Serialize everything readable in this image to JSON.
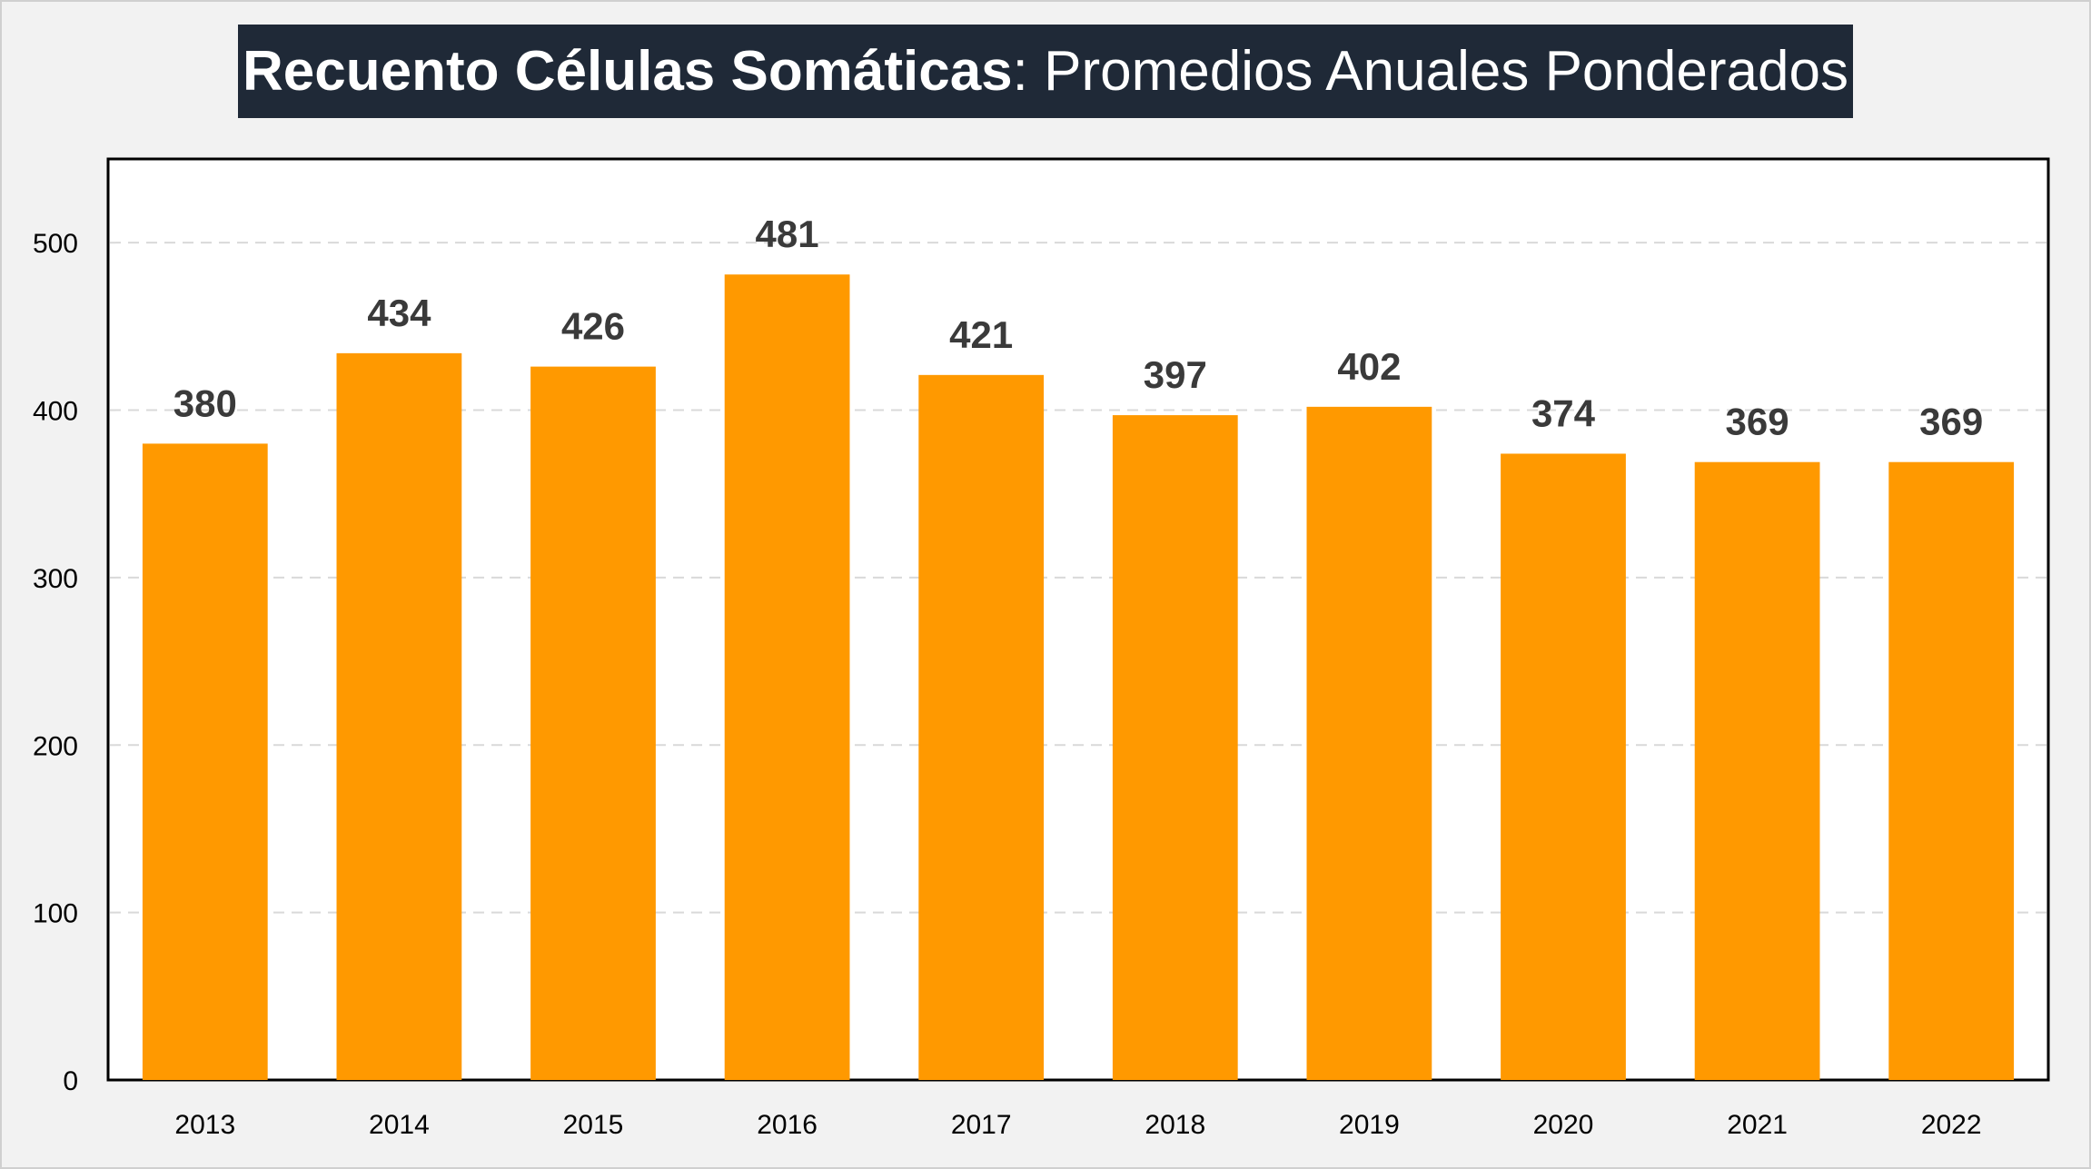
{
  "chart_data": {
    "type": "bar",
    "title": "Recuento Células Somáticas",
    "title_separator": ":",
    "subtitle": "Promedios Anuales Ponderados",
    "categories": [
      "2013",
      "2014",
      "2015",
      "2016",
      "2017",
      "2018",
      "2019",
      "2020",
      "2021",
      "2022"
    ],
    "values": [
      380,
      434,
      426,
      481,
      421,
      397,
      402,
      374,
      369,
      369
    ],
    "ylim": [
      0,
      550
    ],
    "yticks": [
      0,
      100,
      200,
      300,
      400,
      500
    ],
    "xlabel": "",
    "ylabel": "",
    "grid": "horizontal dashed",
    "legend": "none",
    "data_labels": true,
    "colors": {
      "bar": "#ff9900",
      "title_background": "#1f2937",
      "title_text": "#ffffff",
      "plot_background": "#ffffff",
      "page_background": "#f2f2f2",
      "gridline": "#d9d9d9",
      "data_label": "#3a3a3a"
    }
  }
}
